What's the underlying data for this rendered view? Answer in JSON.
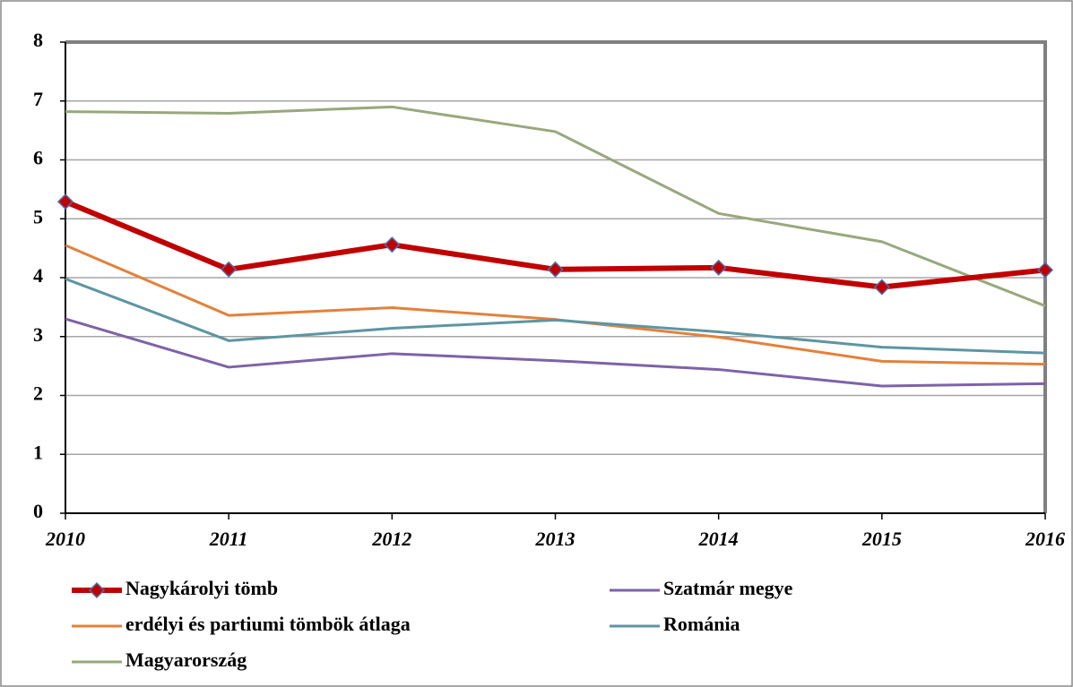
{
  "chart_data": {
    "type": "line",
    "categories": [
      "2010",
      "2011",
      "2012",
      "2013",
      "2014",
      "2015",
      "2016"
    ],
    "series": [
      {
        "name": "Nagykárolyi tömb",
        "color": "#c00000",
        "marker": "diamond",
        "values": [
          5.29,
          4.14,
          4.56,
          4.14,
          4.17,
          3.84,
          4.13
        ]
      },
      {
        "name": "Szatmár megye",
        "color": "#7e62a8",
        "values": [
          3.3,
          2.48,
          2.71,
          2.59,
          2.44,
          2.16,
          2.2
        ]
      },
      {
        "name": "erdélyi és partiumi tömbök átlaga",
        "color": "#e3813a",
        "values": [
          4.55,
          3.36,
          3.49,
          3.29,
          2.99,
          2.58,
          2.53
        ]
      },
      {
        "name": "Románia",
        "color": "#5e95a3",
        "values": [
          3.98,
          2.93,
          3.14,
          3.28,
          3.08,
          2.82,
          2.72
        ]
      },
      {
        "name": "Magyarország",
        "color": "#98a87c",
        "values": [
          6.82,
          6.79,
          6.9,
          6.48,
          5.09,
          4.61,
          3.52
        ]
      }
    ],
    "ylim": [
      0,
      8
    ],
    "yticks": [
      0,
      1,
      2,
      3,
      4,
      5,
      6,
      7,
      8
    ],
    "grid": true,
    "legend": "bottom"
  }
}
